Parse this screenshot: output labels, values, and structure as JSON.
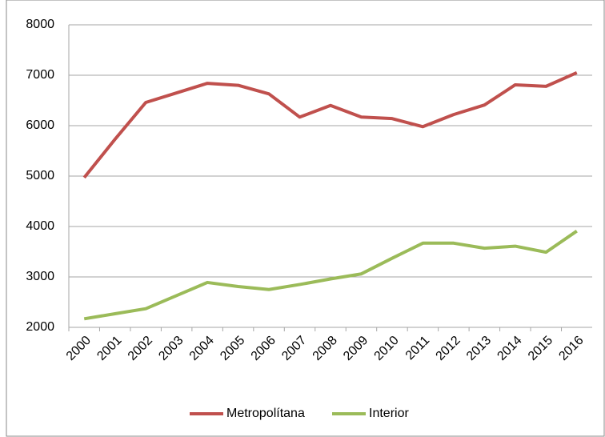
{
  "chart_data": {
    "type": "line",
    "categories": [
      "2000",
      "2001",
      "2002",
      "2003",
      "2004",
      "2005",
      "2006",
      "2007",
      "2008",
      "2009",
      "2010",
      "2011",
      "2012",
      "2013",
      "2014",
      "2015",
      "2016"
    ],
    "series": [
      {
        "name": "Metropolítana",
        "color": "#c0504d",
        "values": [
          4970,
          5730,
          6460,
          6650,
          6840,
          6800,
          6630,
          6170,
          6400,
          6170,
          6140,
          5980,
          6220,
          6410,
          6810,
          6780,
          7050
        ]
      },
      {
        "name": "Interior",
        "color": "#9bbb59",
        "values": [
          2170,
          2270,
          2370,
          2630,
          2890,
          2810,
          2750,
          2850,
          2960,
          3060,
          3370,
          3670,
          3670,
          3570,
          3610,
          3490,
          3910
        ]
      }
    ],
    "ylim": [
      2000,
      8000
    ],
    "yticks": [
      2000,
      3000,
      4000,
      5000,
      6000,
      7000,
      8000
    ],
    "grid": true,
    "legend": "bottom"
  }
}
